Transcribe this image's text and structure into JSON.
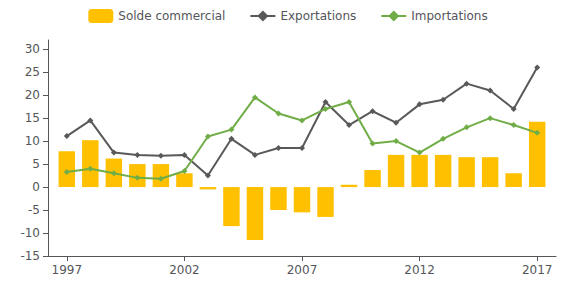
{
  "chart_data": {
    "type": "bar",
    "x": [
      1997,
      1998,
      1999,
      2000,
      2001,
      2002,
      2003,
      2004,
      2005,
      2006,
      2007,
      2008,
      2009,
      2010,
      2011,
      2012,
      2013,
      2014,
      2015,
      2016,
      2017
    ],
    "series": [
      {
        "name": "Solde commercial",
        "type": "bar",
        "color": "#FFC000",
        "values": [
          7.8,
          10.2,
          6.2,
          5.0,
          5.0,
          3.0,
          -0.5,
          -8.5,
          -11.5,
          -5.0,
          -5.5,
          -6.5,
          0.5,
          3.7,
          7.0,
          7.0,
          7.0,
          6.5,
          6.5,
          3.0,
          14.2
        ]
      },
      {
        "name": "Exportations",
        "type": "line",
        "color": "#595959",
        "marker": "diamond",
        "values": [
          11.1,
          14.5,
          7.5,
          7.0,
          6.8,
          7.0,
          2.5,
          10.5,
          7.0,
          8.5,
          8.5,
          18.5,
          13.5,
          16.5,
          14.0,
          18.0,
          19.0,
          22.5,
          21.0,
          17.0,
          26.0
        ]
      },
      {
        "name": "Importations",
        "type": "line",
        "color": "#70AD47",
        "marker": "diamond",
        "values": [
          3.3,
          4.0,
          3.0,
          2.0,
          1.8,
          3.5,
          11.0,
          12.5,
          19.5,
          16.0,
          14.5,
          17.0,
          18.5,
          9.5,
          10.0,
          7.5,
          10.5,
          13.0,
          15.0,
          13.5,
          11.8
        ]
      }
    ],
    "xlim": [
      1996.2,
      2017.8
    ],
    "xticks": [
      1997,
      2002,
      2007,
      2012,
      2017
    ],
    "ylim": [
      -15,
      32
    ],
    "yticks": [
      -15,
      -10,
      -5,
      0,
      5,
      10,
      15,
      20,
      25,
      30
    ],
    "grid": false,
    "legend": "top"
  }
}
